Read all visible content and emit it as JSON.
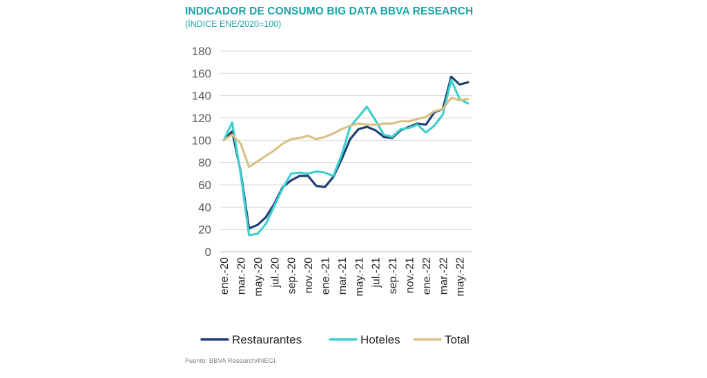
{
  "title": "INDICADOR DE CONSUMO BIG DATA BBVA RESEARCH",
  "subtitle": "(ÍNDICE ENE/2020=100)",
  "source": "Fuente: BBVA Research/INEGI.",
  "chart_data": {
    "type": "line",
    "x": [
      "ene.-20",
      "feb.-20",
      "mar.-20",
      "abr.-20",
      "may.-20",
      "jun.-20",
      "jul.-20",
      "ago.-20",
      "sep.-20",
      "oct.-20",
      "nov.-20",
      "dic.-20",
      "ene.-21",
      "feb.-21",
      "mar.-21",
      "abr.-21",
      "may.-21",
      "jun.-21",
      "jul.-21",
      "ago.-21",
      "sep.-21",
      "oct.-21",
      "nov.-21",
      "dic.-21",
      "ene.-22",
      "feb.-22",
      "mar.-22",
      "abr.-22",
      "may.-22",
      "jun.-22"
    ],
    "tick_labels": [
      "ene.-20",
      "mar.-20",
      "may.-20",
      "jul.-20",
      "sep.-20",
      "nov.-20",
      "ene.-21",
      "mar.-21",
      "may.-21",
      "jul.-21",
      "sep.-21",
      "nov.-21",
      "ene.-22",
      "mar.-22",
      "may.-22"
    ],
    "ylim": [
      0,
      180
    ],
    "yticks": [
      0,
      20,
      40,
      60,
      80,
      100,
      120,
      140,
      160,
      180
    ],
    "grid": true,
    "legend_position": "bottom",
    "series": [
      {
        "name": "Restaurantes",
        "color": "#1f3f73",
        "values": [
          100,
          108,
          72,
          21,
          24,
          31,
          43,
          58,
          64,
          68,
          68,
          59,
          58,
          67,
          83,
          101,
          110,
          112,
          109,
          103,
          102,
          109,
          112,
          115,
          114,
          125,
          128,
          157,
          150,
          152
        ]
      },
      {
        "name": "Hoteles",
        "color": "#3dd0cf",
        "values": [
          100,
          116,
          70,
          15,
          16,
          25,
          41,
          57,
          70,
          71,
          70,
          72,
          71,
          68,
          87,
          112,
          121,
          130,
          118,
          105,
          103,
          110,
          111,
          114,
          107,
          113,
          123,
          154,
          137,
          133
        ]
      },
      {
        "name": "Total",
        "color": "#d8c283",
        "values": [
          100,
          105,
          97,
          76,
          81,
          86,
          91,
          97,
          101,
          102,
          104,
          101,
          103,
          106,
          110,
          113,
          115,
          114,
          114,
          115,
          115,
          117,
          117,
          119,
          121,
          126,
          128,
          138,
          136,
          137
        ]
      }
    ]
  }
}
